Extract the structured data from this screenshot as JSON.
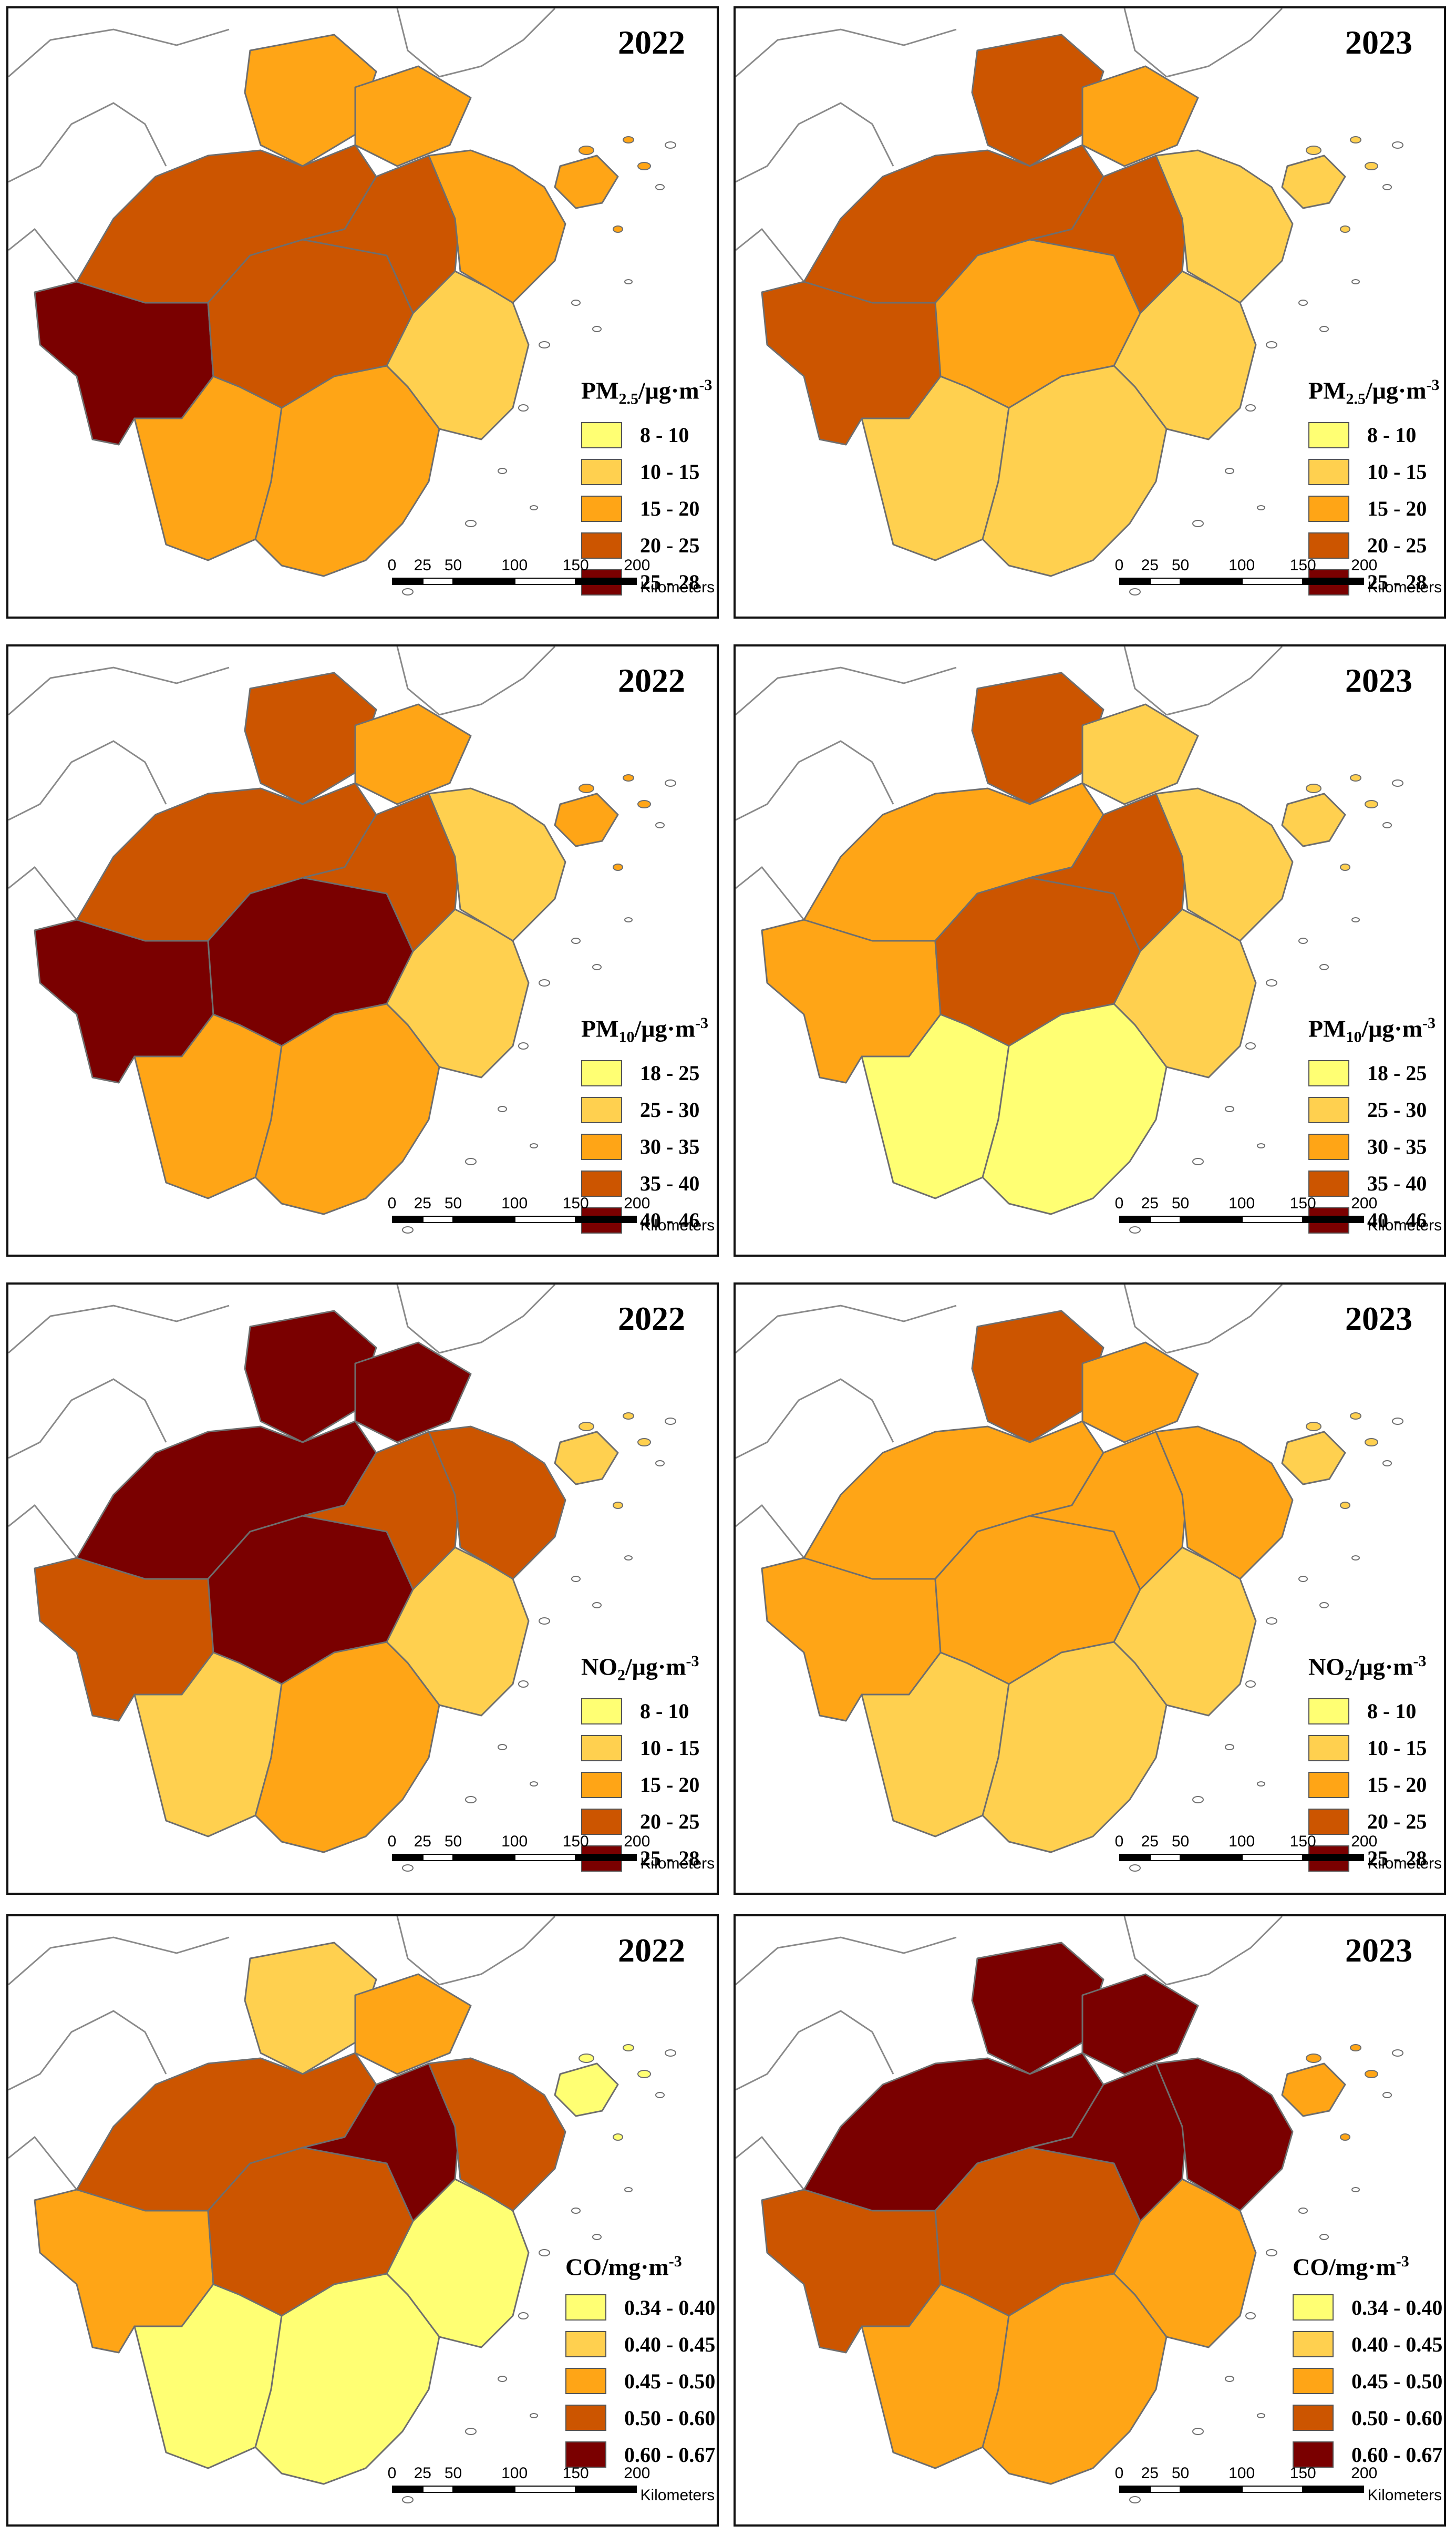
{
  "colors": {
    "c1": "#ffff73",
    "c2": "#ffd04f",
    "c3": "#ffa516",
    "c4": "#cc5500",
    "c5": "#7a0000",
    "border": "#6e6e6e",
    "neighbor": "#8a8a8a"
  },
  "scale": {
    "ticks": [
      "0",
      "25",
      "50",
      "100",
      "150",
      "200"
    ],
    "units": "Kilometers"
  },
  "panels": [
    {
      "year": "2022",
      "pollutant": "PM",
      "sub": "2.5",
      "unit": "/μg·m",
      "sup": "-3",
      "ranges": [
        "8 - 10",
        "10 - 15",
        "15 - 20",
        "20 - 25",
        "25 - 28"
      ],
      "classes": [
        3,
        3,
        4,
        5,
        4,
        4,
        3,
        3,
        2,
        3,
        3
      ]
    },
    {
      "year": "2023",
      "pollutant": "PM",
      "sub": "2.5",
      "unit": "/μg·m",
      "sup": "-3",
      "ranges": [
        "8 - 10",
        "10 - 15",
        "15 - 20",
        "20 - 25",
        "25 - 28"
      ],
      "classes": [
        4,
        3,
        4,
        4,
        3,
        4,
        2,
        2,
        2,
        2,
        2
      ]
    },
    {
      "year": "2022",
      "pollutant": "PM",
      "sub": "10",
      "unit": "/μg·m",
      "sup": "-3",
      "ranges": [
        "18 - 25",
        "25 - 30",
        "30 - 35",
        "35 - 40",
        "40 - 46"
      ],
      "classes": [
        4,
        3,
        4,
        5,
        5,
        4,
        2,
        3,
        2,
        3,
        3
      ]
    },
    {
      "year": "2023",
      "pollutant": "PM",
      "sub": "10",
      "unit": "/μg·m",
      "sup": "-3",
      "ranges": [
        "18 - 25",
        "25 - 30",
        "30 - 35",
        "35 - 40",
        "40 - 46"
      ],
      "classes": [
        4,
        2,
        3,
        3,
        4,
        4,
        2,
        1,
        2,
        1,
        2
      ]
    },
    {
      "year": "2022",
      "pollutant": "NO",
      "sub": "2",
      "unit": "/μg·m",
      "sup": "-3",
      "ranges": [
        "8 - 10",
        "10 - 15",
        "15 - 20",
        "20 - 25",
        "25 - 28"
      ],
      "classes": [
        5,
        5,
        5,
        4,
        5,
        4,
        4,
        2,
        2,
        3,
        2
      ]
    },
    {
      "year": "2023",
      "pollutant": "NO",
      "sub": "2",
      "unit": "/μg·m",
      "sup": "-3",
      "ranges": [
        "8 - 10",
        "10 - 15",
        "15 - 20",
        "20 - 25",
        "25 - 28"
      ],
      "classes": [
        4,
        3,
        3,
        3,
        3,
        3,
        3,
        2,
        2,
        2,
        2
      ]
    },
    {
      "year": "2022",
      "pollutant": "CO",
      "sub": "",
      "unit": "/mg·m",
      "sup": "-3",
      "ranges": [
        "0.34 - 0.40",
        "0.40 - 0.45",
        "0.45 - 0.50",
        "0.50 - 0.60",
        "0.60 - 0.67"
      ],
      "classes": [
        2,
        3,
        4,
        3,
        4,
        5,
        4,
        1,
        1,
        1,
        1
      ]
    },
    {
      "year": "2023",
      "pollutant": "CO",
      "sub": "",
      "unit": "/mg·m",
      "sup": "-3",
      "ranges": [
        "0.34 - 0.40",
        "0.40 - 0.45",
        "0.45 - 0.50",
        "0.50 - 0.60",
        "0.60 - 0.67"
      ],
      "classes": [
        5,
        5,
        5,
        4,
        4,
        5,
        5,
        3,
        3,
        3,
        3
      ]
    }
  ]
}
